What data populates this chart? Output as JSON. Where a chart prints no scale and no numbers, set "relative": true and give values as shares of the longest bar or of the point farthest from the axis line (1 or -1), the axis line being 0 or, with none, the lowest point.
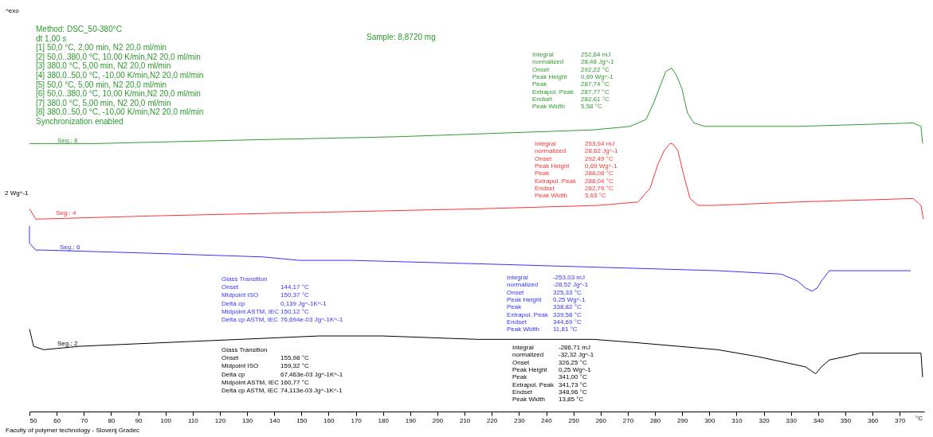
{
  "chart_data": {
    "type": "line",
    "relative": true,
    "xlabel": "°C",
    "ylabel": "2 Wg^-1",
    "xlim": [
      50,
      379
    ],
    "xticks": [
      50,
      60,
      70,
      80,
      90,
      100,
      110,
      120,
      130,
      140,
      150,
      160,
      170,
      180,
      190,
      200,
      210,
      220,
      230,
      240,
      250,
      260,
      270,
      280,
      290,
      300,
      310,
      320,
      330,
      340,
      350,
      360,
      370
    ],
    "grid": false,
    "legend": false,
    "series": [
      {
        "name": "Seg.: 8",
        "color": "#2e9a2e",
        "x": [
          50,
          74.3,
          127.1,
          185.8,
          257.6,
          270.8,
          276.7,
          279.6,
          282.0,
          284.0,
          286.1,
          287.8,
          289.9,
          291.9,
          294.3,
          298.4,
          332.4,
          374.9,
          377.8,
          378.4
        ],
        "values": [
          0.78,
          0.78,
          0.79,
          0.8,
          0.82,
          0.83,
          0.85,
          0.9,
          0.95,
          0.99,
          1.0,
          0.98,
          0.94,
          0.87,
          0.84,
          0.83,
          0.83,
          0.84,
          0.83,
          0.78
        ]
      },
      {
        "name": "Seg.: 4",
        "color": "#ff3333",
        "x": [
          50,
          52.3,
          97.8,
          156.5,
          215.1,
          259.1,
          273.8,
          278.2,
          281.1,
          283.4,
          285.5,
          286.4,
          288.4,
          290.5,
          292.9,
          295.8,
          301.7,
          332.4,
          374.9,
          377.8,
          378.7
        ],
        "values": [
          0.59,
          0.56,
          0.57,
          0.58,
          0.59,
          0.6,
          0.61,
          0.65,
          0.72,
          0.76,
          0.78,
          0.78,
          0.76,
          0.69,
          0.62,
          0.6,
          0.6,
          0.61,
          0.62,
          0.6,
          0.56
        ]
      },
      {
        "name": "Seg.: 6",
        "color": "#3333ff",
        "x": [
          50,
          50,
          52.3,
          55.3,
          97.8,
          135.9,
          149.1,
          168.2,
          215.1,
          259.1,
          303.1,
          326.5,
          332.4,
          335.3,
          337.7,
          339.7,
          341.2,
          344.1,
          350.0,
          374.0
        ],
        "values": [
          0.54,
          0.49,
          0.47,
          0.47,
          0.46,
          0.45,
          0.44,
          0.44,
          0.43,
          0.42,
          0.41,
          0.4,
          0.38,
          0.36,
          0.35,
          0.36,
          0.38,
          0.41,
          0.41,
          0.41
        ]
      },
      {
        "name": "Seg.: 2",
        "color": "#000000",
        "x": [
          50,
          50.9,
          51.5,
          55.3,
          68.5,
          97.8,
          127.1,
          156.5,
          179.9,
          215.1,
          257.6,
          273.8,
          303.1,
          317.7,
          329.5,
          335.3,
          339.1,
          341.2,
          344.1,
          350.0,
          355.6,
          377.8,
          378.4
        ],
        "values": [
          0.24,
          0.21,
          0.19,
          0.18,
          0.19,
          0.2,
          0.21,
          0.22,
          0.22,
          0.21,
          0.21,
          0.2,
          0.18,
          0.16,
          0.14,
          0.13,
          0.11,
          0.13,
          0.15,
          0.16,
          0.17,
          0.17,
          0.1
        ]
      }
    ],
    "annotations": [
      "^exo",
      "Method: DSC_50-380°C\ndt 1,00 s\n[1] 50,0 °C, 2,00 min,  N2 20,0 ml/min\n[2] 50,0..380,0 °C, 10,00 K/min,N2 20,0 ml/min\n[3] 380,0 °C, 5,00 min, N2 20,0 ml/min\n[4] 380,0..50,0 °C, -10,00 K/min,N2 20,0 ml/min\n[5] 50,0 °C, 5,00 min,  N2 20,0 ml/min\n[6] 50,0..380,0 °C, 10,00 K/min,N2 20,0 ml/min\n[7] 380,0 °C, 5,00 min, N2 20,0 ml/min\n[8] 380,0..50,0 °C, -10,00 K/min,N2 20,0 ml/min\nSynchronization enabled",
      "Sample: 8,8720 mg",
      "Integral\n  normalized\nOnset\nPeak Height\nPeak\nExtrapol. Peak\nEndset\nPeak Width",
      "252,64 mJ\n28,48 Jg^-1\n292,22 °C\n0,69 Wg^-1\n287,74 °C\n287,77 °C\n282,61 °C\n5,58 °C",
      "Integral\n  normalized\nOnset\nPeak Height\nPeak\nExtrapol. Peak\nEndset\nPeak Width",
      "253,94 mJ\n28,62 Jg^-1\n292,49 °C\n0,69 Wg^-1\n288,08 °C\n288,04 °C\n282,79 °C\n5,63 °C",
      "Glass Transition\nOnset\nMidpoint ISO\nDelta cp\nMidpoint ASTM, IEC\nDelta cp ASTM, IEC",
      "\n144,17 °C\n150,37 °C\n0,139 Jg^-1K^-1\n150,12 °C\n76,694e-03 Jg^-1K^-1",
      "Integral\n  normalized\nOnset\nPeak Height\nPeak\nExtrapol. Peak\nEndset\nPeak Width",
      "-253,03 mJ\n-28,52 Jg^-1\n325,33 °C\n0,25 Wg^-1\n338,82 °C\n339,58 °C\n344,69 °C\n11,81 °C",
      "Glass Transition\nOnset\nMidpoint ISO\nDelta cp\nMidpoint ASTM, IEC\nDelta cp ASTM, IEC",
      "\n155,98 °C\n159,32 °C\n67,463e-03 Jg^-1K^-1\n160,77 °C\n74,113e-03 Jg^-1K^-1",
      "Integral\n  normalized\nOnset\nPeak Height\nPeak\nExtrapol. Peak\nEndset\nPeak Width",
      "-286,71 mJ\n-32,32 Jg^-1\n326,25 °C\n0,25 Wg^-1\n341,00 °C\n341,73 °C\n348,96 °C\n13,85 °C",
      "Faculty of polymer technology - Slovenj Gradec"
    ]
  }
}
